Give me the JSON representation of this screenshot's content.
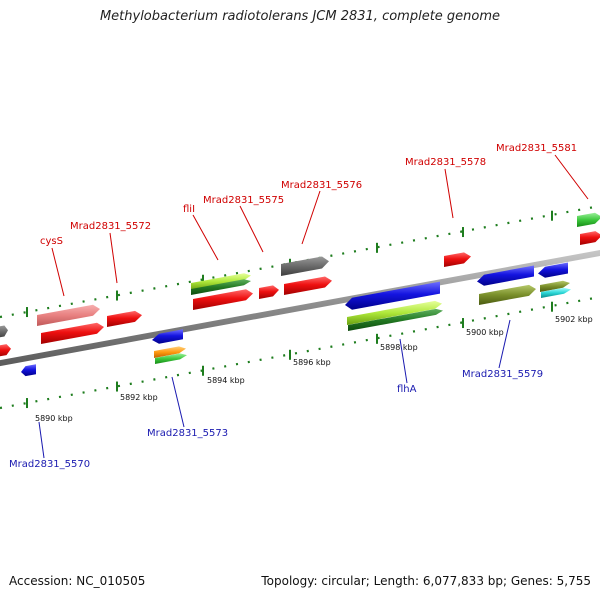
{
  "title": "Methylobacterium radiotolerans JCM 2831, complete genome",
  "footer": {
    "accession": "Accession: NC_010505",
    "summary": "Topology: circular; Length: 6,077,833 bp; Genes: 5,755"
  },
  "colors": {
    "backbone": "#8a8a8a",
    "tick": "#1e7d1e",
    "red_label": "#d00000",
    "blue_label": "#1a1ab0"
  },
  "scale": {
    "ticks": [
      "5890 kbp",
      "5892 kbp",
      "5894 kbp",
      "5896 kbp",
      "5898 kbp",
      "5900 kbp",
      "5902 kbp"
    ]
  },
  "labels": {
    "top": [
      "cysS",
      "Mrad2831_5572",
      "fliI",
      "Mrad2831_5575",
      "Mrad2831_5576",
      "Mrad2831_5578",
      "Mrad2831_5581"
    ],
    "bottom": [
      "Mrad2831_5570",
      "Mrad2831_5573",
      "flhA",
      "Mrad2831_5579"
    ]
  }
}
